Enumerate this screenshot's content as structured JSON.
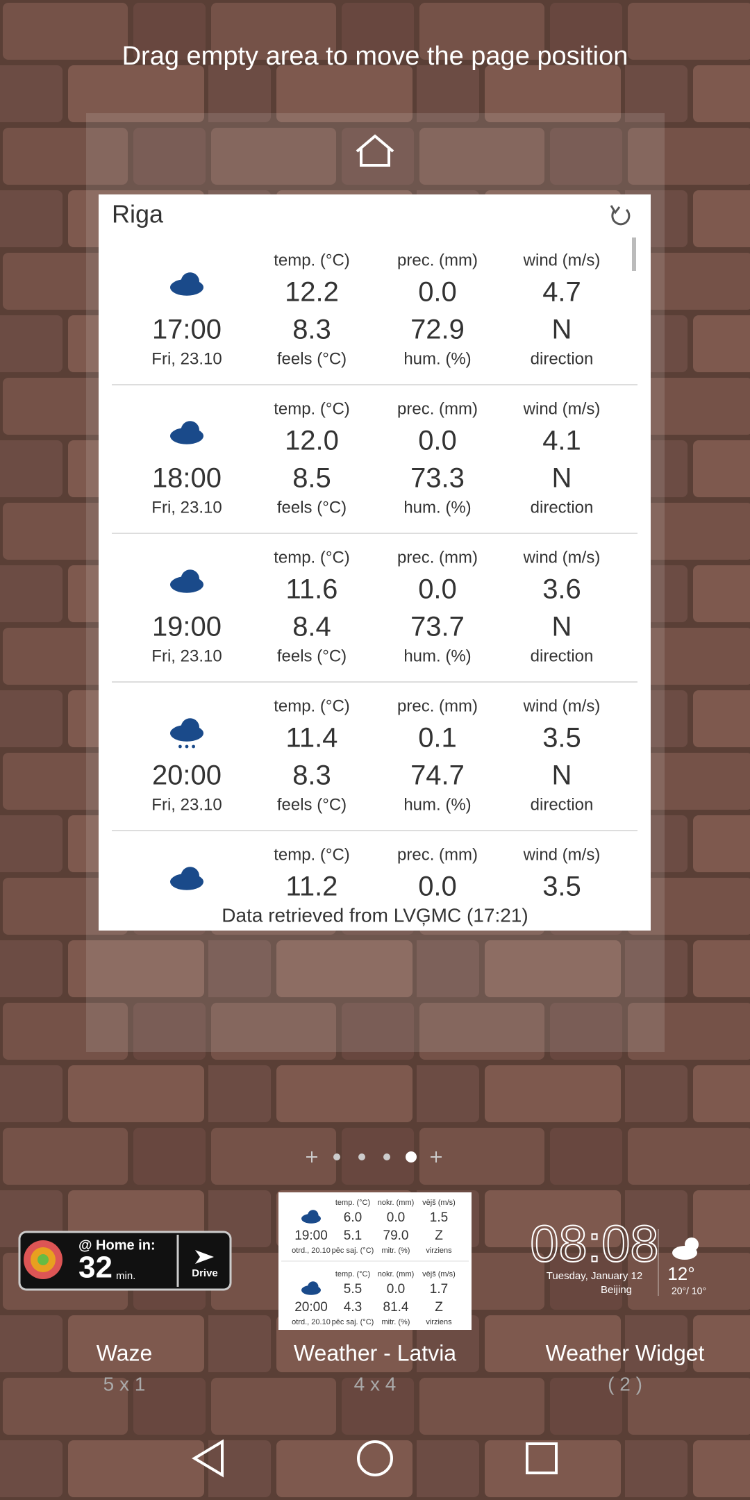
{
  "hint": "Drag empty area to move the page position",
  "widget": {
    "title": "Riga",
    "rows": [
      {
        "temp_label": "temp. (°C)",
        "temp": "12.2",
        "prec_label": "prec. (mm)",
        "prec": "0.0",
        "wind_label": "wind (m/s)",
        "wind": "4.7",
        "time": "17:00",
        "feels": "8.3",
        "hum": "72.9",
        "direction": "N",
        "date": "Fri, 23.10",
        "feels_label": "feels (°C)",
        "hum_label": "hum. (%)",
        "direction_label": "direction"
      },
      {
        "temp_label": "temp. (°C)",
        "temp": "12.0",
        "prec_label": "prec. (mm)",
        "prec": "0.0",
        "wind_label": "wind (m/s)",
        "wind": "4.1",
        "time": "18:00",
        "feels": "8.5",
        "hum": "73.3",
        "direction": "N",
        "date": "Fri, 23.10",
        "feels_label": "feels (°C)",
        "hum_label": "hum. (%)",
        "direction_label": "direction"
      },
      {
        "temp_label": "temp. (°C)",
        "temp": "11.6",
        "prec_label": "prec. (mm)",
        "prec": "0.0",
        "wind_label": "wind (m/s)",
        "wind": "3.6",
        "time": "19:00",
        "feels": "8.4",
        "hum": "73.7",
        "direction": "N",
        "date": "Fri, 23.10",
        "feels_label": "feels (°C)",
        "hum_label": "hum. (%)",
        "direction_label": "direction"
      },
      {
        "temp_label": "temp. (°C)",
        "temp": "11.4",
        "prec_label": "prec. (mm)",
        "prec": "0.1",
        "wind_label": "wind (m/s)",
        "wind": "3.5",
        "time": "20:00",
        "feels": "8.3",
        "hum": "74.7",
        "direction": "N",
        "date": "Fri, 23.10",
        "feels_label": "feels (°C)",
        "hum_label": "hum. (%)",
        "direction_label": "direction"
      },
      {
        "temp_label": "temp. (°C)",
        "temp": "11.2",
        "prec_label": "prec. (mm)",
        "prec": "0.0",
        "wind_label": "wind (m/s)",
        "wind": "3.5"
      }
    ],
    "footer": "Data retrieved from LVĢMC (17:21)"
  },
  "waze": {
    "home": "@ Home in:",
    "minutes": "32",
    "unit": "min.",
    "drive": "Drive",
    "name": "Waze",
    "size": "5 x 1"
  },
  "latvia": {
    "name": "Weather - Latvia",
    "size": "4 x 4",
    "rows": [
      {
        "temp_label": "temp. (°C)",
        "temp": "6.0",
        "prec_label": "nokr. (mm)",
        "prec": "0.0",
        "wind_label": "vējš (m/s)",
        "wind": "1.5",
        "time": "19:00",
        "feels": "5.1",
        "hum": "79.0",
        "direction": "Z",
        "date": "otrd., 20.10",
        "feels_label": "pēc saj. (°C)",
        "hum_label": "mitr. (%)",
        "direction_label": "virziens"
      },
      {
        "temp_label": "temp. (°C)",
        "temp": "5.5",
        "prec_label": "nokr. (mm)",
        "prec": "0.0",
        "wind_label": "vējš (m/s)",
        "wind": "1.7",
        "time": "20:00",
        "feels": "4.3",
        "hum": "81.4",
        "direction": "Z",
        "date": "otrd., 20.10",
        "feels_label": "pēc saj. (°C)",
        "hum_label": "mitr. (%)",
        "direction_label": "virziens"
      }
    ]
  },
  "clock": {
    "time": "08:08",
    "date": "Tuesday, January 12",
    "city": "Beijing",
    "temp": "12°",
    "range": "20°/ 10°",
    "name": "Weather Widget",
    "count": "( 2 )"
  }
}
